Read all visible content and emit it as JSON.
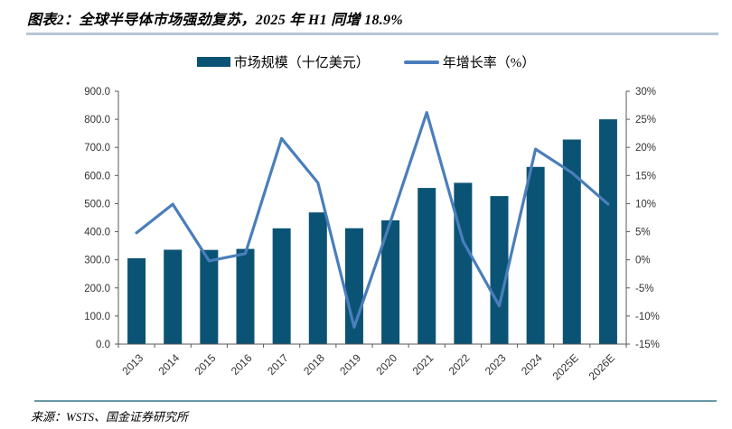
{
  "header": {
    "title": "图表2：全球半导体市场强劲复苏，2025 年 H1 同增 18.9%"
  },
  "legend": [
    {
      "type": "bar",
      "label": "市场规模（十亿美元）",
      "color": "#0b5374"
    },
    {
      "type": "line",
      "label": "年增长率（%）",
      "color": "#4a7ebb"
    }
  ],
  "chart_data": {
    "type": "bar-line-combo",
    "categories": [
      "2013",
      "2014",
      "2015",
      "2016",
      "2017",
      "2018",
      "2019",
      "2020",
      "2021",
      "2022",
      "2023",
      "2024",
      "2025E",
      "2026E"
    ],
    "series": [
      {
        "name": "市场规模（十亿美元）",
        "type": "bar",
        "axis": "left",
        "color": "#0b5374",
        "values": [
          305.6,
          335.8,
          335.2,
          338.9,
          412.2,
          468.8,
          412.3,
          440.4,
          555.9,
          574.1,
          526.9,
          630.5,
          728.0,
          800.0
        ]
      },
      {
        "name": "年增长率（%）",
        "type": "line",
        "axis": "right",
        "color": "#4a7ebb",
        "values": [
          4.8,
          9.9,
          -0.2,
          1.1,
          21.6,
          13.7,
          -12.0,
          6.8,
          26.2,
          3.3,
          -8.2,
          19.7,
          15.5,
          9.9
        ]
      }
    ],
    "left_axis": {
      "min": 0,
      "max": 900,
      "step": 100,
      "tick_labels": [
        "0.0",
        "100.0",
        "200.0",
        "300.0",
        "400.0",
        "500.0",
        "600.0",
        "700.0",
        "800.0",
        "900.0"
      ]
    },
    "right_axis": {
      "min": -15,
      "max": 30,
      "step": 5,
      "tick_labels": [
        "-15%",
        "-10%",
        "-5%",
        "0%",
        "5%",
        "10%",
        "15%",
        "20%",
        "25%",
        "30%"
      ]
    },
    "legend_position": "top",
    "grid": false
  },
  "footer": {
    "source": "来源：WSTS、国金证券研究所"
  }
}
